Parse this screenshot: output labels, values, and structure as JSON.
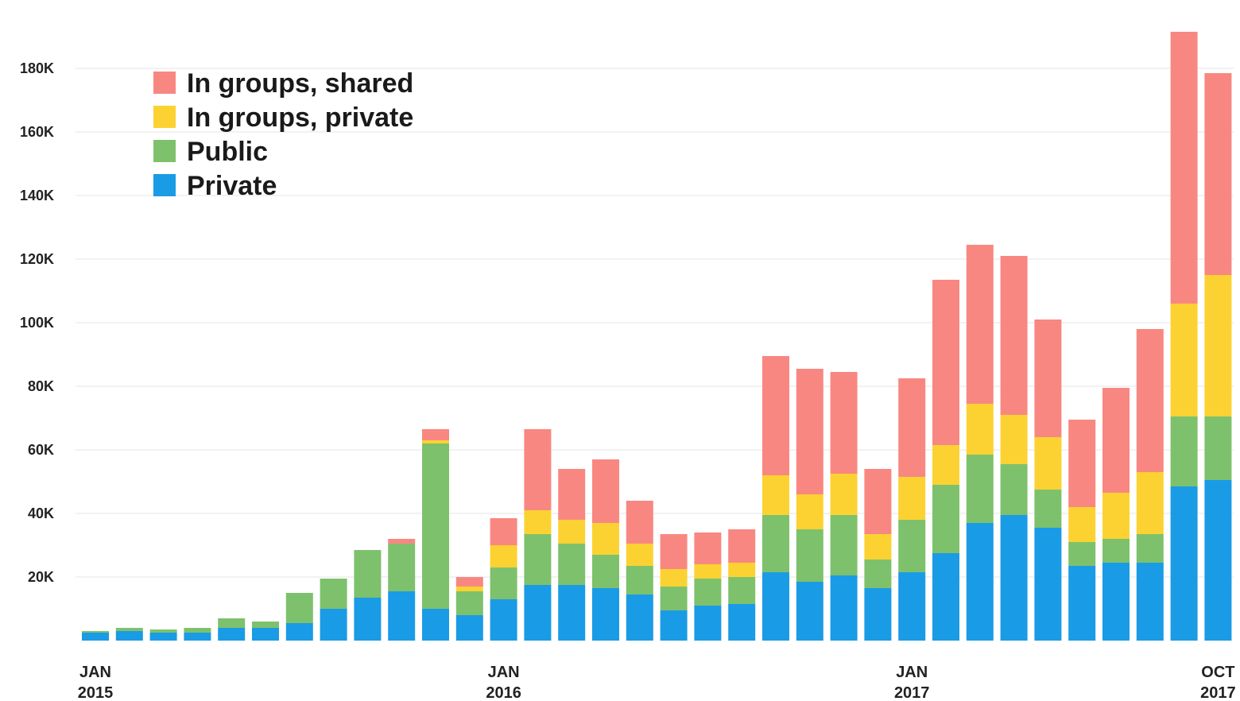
{
  "chart_data": {
    "type": "bar",
    "stacked": true,
    "title": "",
    "xlabel": "",
    "ylabel": "",
    "ylim": [
      0,
      200000
    ],
    "y_ticks": [
      {
        "value": 20000,
        "label": "20K"
      },
      {
        "value": 40000,
        "label": "40K"
      },
      {
        "value": 60000,
        "label": "60K"
      },
      {
        "value": 80000,
        "label": "80K"
      },
      {
        "value": 100000,
        "label": "100K"
      },
      {
        "value": 120000,
        "label": "120K"
      },
      {
        "value": 140000,
        "label": "140K"
      },
      {
        "value": 160000,
        "label": "160K"
      },
      {
        "value": 180000,
        "label": "180K"
      }
    ],
    "x_ticks": [
      {
        "index": 0,
        "line1": "JAN",
        "line2": "2015"
      },
      {
        "index": 12,
        "line1": "JAN",
        "line2": "2016"
      },
      {
        "index": 24,
        "line1": "JAN",
        "line2": "2017"
      },
      {
        "index": 33,
        "line1": "OCT",
        "line2": "2017"
      }
    ],
    "categories": [
      "2015-01",
      "2015-02",
      "2015-03",
      "2015-04",
      "2015-05",
      "2015-06",
      "2015-07",
      "2015-08",
      "2015-09",
      "2015-10",
      "2015-11",
      "2015-12",
      "2016-01",
      "2016-02",
      "2016-03",
      "2016-04",
      "2016-05",
      "2016-06",
      "2016-07",
      "2016-08",
      "2016-09",
      "2016-10",
      "2016-11",
      "2016-12",
      "2017-01",
      "2017-02",
      "2017-03",
      "2017-04",
      "2017-05",
      "2017-06",
      "2017-07",
      "2017-08",
      "2017-09",
      "2017-10"
    ],
    "grid": true,
    "legend_position": "top-left",
    "series": [
      {
        "name": "Private",
        "color": "#1a9be6",
        "values": [
          2500,
          3000,
          2500,
          2500,
          4000,
          4000,
          5500,
          10000,
          13500,
          15500,
          10000,
          8000,
          13000,
          17500,
          17500,
          16500,
          14500,
          9500,
          11000,
          11500,
          21500,
          18500,
          20500,
          16500,
          21500,
          27500,
          37000,
          39500,
          35500,
          23500,
          24500,
          24500,
          48500,
          50500
        ]
      },
      {
        "name": "Public",
        "color": "#7ec16c",
        "values": [
          500,
          1000,
          1000,
          1500,
          3000,
          2000,
          9500,
          9500,
          15000,
          15000,
          52000,
          7500,
          10000,
          16000,
          13000,
          10500,
          9000,
          7500,
          8500,
          8500,
          18000,
          16500,
          19000,
          9000,
          16500,
          21500,
          21500,
          16000,
          12000,
          7500,
          7500,
          9000,
          22000,
          20000
        ]
      },
      {
        "name": "In groups, private",
        "color": "#fcd232",
        "values": [
          0,
          0,
          0,
          0,
          0,
          0,
          0,
          0,
          0,
          0,
          1000,
          1500,
          7000,
          7500,
          7500,
          10000,
          7000,
          5500,
          4500,
          4500,
          12500,
          11000,
          13000,
          8000,
          13500,
          12500,
          16000,
          15500,
          16500,
          11000,
          14500,
          19500,
          35500,
          44500
        ]
      },
      {
        "name": "In groups, shared",
        "color": "#f98781",
        "values": [
          0,
          0,
          0,
          0,
          0,
          0,
          0,
          0,
          0,
          1500,
          3500,
          3000,
          8500,
          25500,
          16000,
          20000,
          13500,
          11000,
          10000,
          10500,
          37500,
          39500,
          32000,
          20500,
          31000,
          52000,
          50000,
          50000,
          37000,
          27500,
          33000,
          45000,
          85500,
          63500
        ]
      }
    ]
  }
}
